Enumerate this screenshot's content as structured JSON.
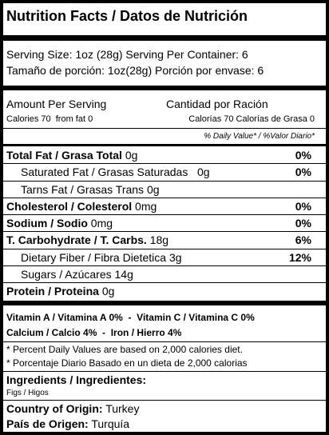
{
  "header": {
    "title": "Nutrition Facts / Datos de Nutrición"
  },
  "serving": {
    "lines": [
      "Serving Size: 1oz (28g) Serving Per Container: 6",
      "Tamaño de porción: 1oz(28g) Porción por envase: 6"
    ]
  },
  "amount": {
    "left": "Amount Per Serving",
    "right": "Cantidad por Ración",
    "calories_left": "Calories 70  from fat 0",
    "calories_right": "Calorías 70 Calorías de Grasa 0",
    "daily_value_header": "% Daily Value* / %Valor Diario*"
  },
  "nutrients": [
    {
      "label": "Total Fat / Grasa Total",
      "amount": "0g",
      "percent": "0%"
    },
    {
      "label": "Saturated Fat / Grasas Saturadas",
      "amount": "0g",
      "percent": "0%"
    },
    {
      "label": "Tarns Fat / Grasas Trans",
      "amount": "0g"
    },
    {
      "label": "Cholesterol / Colesterol",
      "amount": "0mg",
      "percent": "0%"
    },
    {
      "label": "Sodium / Sodio",
      "amount": "0mg",
      "percent": "0%"
    },
    {
      "label": "T. Carbohydrate / T. Carbs.",
      "amount": "18g",
      "percent": "6%"
    },
    {
      "label": "Dietary Fiber / Fibra Dietetica",
      "amount": "3g",
      "percent": "12%"
    },
    {
      "label": "Sugars / Azúcares",
      "amount": "14g"
    },
    {
      "label": "Protein / Proteina",
      "amount": "0g"
    }
  ],
  "vitamins": [
    "Vitamin A / Vitamina A 0%  -  Vitamin C / Vitamina C 0%",
    "Calcium / Calcio 4%  -  Iron / Hierro 4%"
  ],
  "footnotes": [
    "* Percent Daily Values are based on 2,000 calories diet.",
    "* Porcentaje Diario Basado en un dieta de 2,000 calorias"
  ],
  "ingredients": {
    "heading": "Ingredients / Ingredientes:",
    "text": "Figs / Higos"
  },
  "origin": {
    "label_en": "Country of Origin:",
    "value_en": "Turkey",
    "label_es": "País de Origen:",
    "value_es": "Turquía"
  }
}
